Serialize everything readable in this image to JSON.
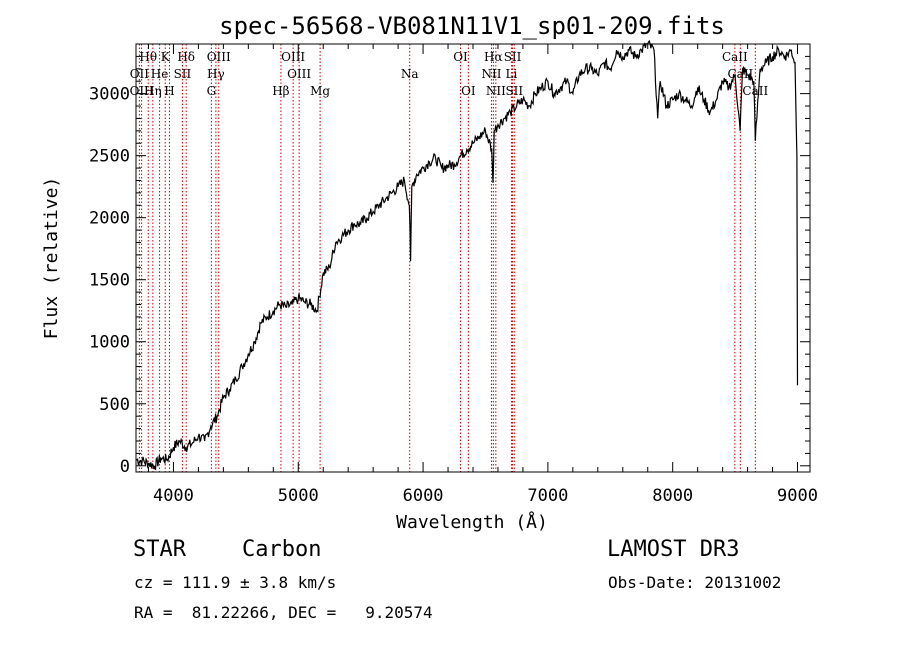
{
  "chart_data": {
    "type": "line",
    "title": "spec-56568-VB081N11V1_sp01-209.fits",
    "xlabel": "Wavelength (Å)",
    "ylabel": "Flux (relative)",
    "xlim": [
      3700,
      9100
    ],
    "ylim": [
      -50,
      3400
    ],
    "xticks": [
      4000,
      5000,
      6000,
      7000,
      8000,
      9000
    ],
    "yticks": [
      0,
      500,
      1000,
      1500,
      2000,
      2500,
      3000
    ],
    "spectrum": {
      "name": "flux",
      "x": [
        3700,
        3750,
        3800,
        3850,
        3900,
        3950,
        4000,
        4050,
        4100,
        4150,
        4200,
        4250,
        4300,
        4350,
        4400,
        4450,
        4500,
        4550,
        4600,
        4650,
        4700,
        4750,
        4800,
        4850,
        4900,
        4950,
        5000,
        5050,
        5100,
        5150,
        5200,
        5250,
        5300,
        5350,
        5400,
        5450,
        5500,
        5550,
        5600,
        5650,
        5700,
        5750,
        5800,
        5850,
        5890,
        5900,
        5910,
        5950,
        6000,
        6050,
        6100,
        6150,
        6200,
        6250,
        6300,
        6350,
        6400,
        6450,
        6500,
        6550,
        6560,
        6570,
        6600,
        6650,
        6700,
        6750,
        6800,
        6850,
        6900,
        6950,
        7000,
        7050,
        7100,
        7150,
        7200,
        7250,
        7300,
        7350,
        7400,
        7450,
        7500,
        7550,
        7600,
        7650,
        7700,
        7750,
        7800,
        7850,
        7880,
        7900,
        7950,
        8000,
        8050,
        8100,
        8150,
        8200,
        8250,
        8300,
        8350,
        8400,
        8450,
        8500,
        8540,
        8560,
        8600,
        8650,
        8662,
        8700,
        8750,
        8800,
        8850,
        8900,
        8950,
        8980,
        8995,
        9000
      ],
      "y": [
        50,
        40,
        20,
        0,
        60,
        50,
        150,
        200,
        150,
        180,
        240,
        200,
        320,
        400,
        550,
        620,
        700,
        800,
        900,
        1000,
        1150,
        1200,
        1250,
        1300,
        1280,
        1300,
        1350,
        1320,
        1300,
        1250,
        1550,
        1600,
        1800,
        1850,
        1900,
        1950,
        1950,
        2000,
        2050,
        2100,
        2150,
        2200,
        2250,
        2300,
        2100,
        1650,
        2250,
        2350,
        2400,
        2450,
        2480,
        2400,
        2420,
        2430,
        2500,
        2550,
        2600,
        2650,
        2700,
        2550,
        2280,
        2700,
        2750,
        2800,
        2850,
        2900,
        2950,
        2900,
        3000,
        3050,
        3100,
        3000,
        3050,
        3100,
        3000,
        3150,
        3200,
        3200,
        3150,
        3250,
        3200,
        3350,
        3300,
        3350,
        3300,
        3350,
        3400,
        3350,
        2800,
        3100,
        2900,
        2950,
        3000,
        2950,
        2900,
        3050,
        2950,
        2850,
        2950,
        3100,
        3050,
        3150,
        2700,
        3200,
        3150,
        3100,
        2620,
        3200,
        3250,
        3300,
        3350,
        3300,
        3350,
        3250,
        2500,
        650
      ]
    },
    "lines": [
      {
        "name": "Hθ",
        "x": 3798,
        "row": 1
      },
      {
        "name": "K",
        "x": 3934,
        "row": 1
      },
      {
        "name": "Hδ",
        "x": 4102,
        "row": 1
      },
      {
        "name": "OIII",
        "x": 4363,
        "row": 1
      },
      {
        "name": "OIII",
        "x": 4959,
        "row": 1
      },
      {
        "name": "OI",
        "x": 6300,
        "row": 1
      },
      {
        "name": "Hα",
        "x": 6563,
        "row": 1
      },
      {
        "name": "SII",
        "x": 6717,
        "row": 1
      },
      {
        "name": "CaII",
        "x": 8498,
        "row": 1
      },
      {
        "name": "OII",
        "x": 3727,
        "row": 2
      },
      {
        "name": "He",
        "x": 3889,
        "row": 2
      },
      {
        "name": "SII",
        "x": 4072,
        "row": 2
      },
      {
        "name": "Hγ",
        "x": 4340,
        "row": 2
      },
      {
        "name": "OIII",
        "x": 5007,
        "row": 2
      },
      {
        "name": "Na",
        "x": 5893,
        "row": 2
      },
      {
        "name": "NII",
        "x": 6548,
        "row": 2
      },
      {
        "name": "Li",
        "x": 6708,
        "row": 2
      },
      {
        "name": "CaII",
        "x": 8542,
        "row": 2
      },
      {
        "name": "OIII",
        "x": 3745,
        "row": 3
      },
      {
        "name": "Hη",
        "x": 3835,
        "row": 3
      },
      {
        "name": "H",
        "x": 3968,
        "row": 3
      },
      {
        "name": "G",
        "x": 4304,
        "row": 3
      },
      {
        "name": "Hβ",
        "x": 4861,
        "row": 3
      },
      {
        "name": "Mg",
        "x": 5175,
        "row": 3
      },
      {
        "name": "OI",
        "x": 6363,
        "row": 3
      },
      {
        "name": "NII",
        "x": 6583,
        "row": 3
      },
      {
        "name": "SII",
        "x": 6731,
        "row": 3
      },
      {
        "name": "CaII",
        "x": 8662,
        "row": 3
      }
    ],
    "grid": false,
    "line_color": "#000000",
    "marker_line_color": "#cc0000"
  },
  "info": {
    "object_class": "STAR",
    "subclass": "Carbon",
    "survey": "LAMOST DR3",
    "cz": "cz = 111.9 ± 3.8 km/s",
    "obs_date": "Obs-Date: 20131002",
    "coords": "RA =  81.22266, DEC =   9.20574"
  }
}
